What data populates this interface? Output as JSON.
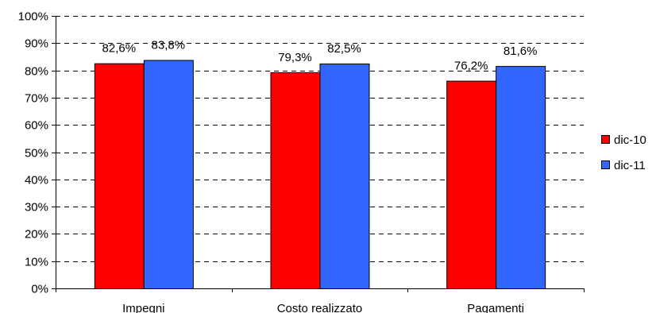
{
  "chart_data": {
    "type": "bar",
    "title": "",
    "xlabel": "",
    "ylabel": "",
    "categories": [
      "Impegni",
      "Costo realizzato",
      "Pagamenti"
    ],
    "series": [
      {
        "name": "dic-10",
        "values": [
          82.6,
          79.3,
          76.2
        ],
        "labels": [
          "82,6%",
          "79,3%",
          "76,2%"
        ],
        "color": "#ff0000"
      },
      {
        "name": "dic-11",
        "values": [
          83.8,
          82.5,
          81.6
        ],
        "labels": [
          "83,8%",
          "82,5%",
          "81,6%"
        ],
        "color": "#3366ff"
      }
    ],
    "ylim": [
      0,
      100
    ],
    "yticks": [
      0,
      10,
      20,
      30,
      40,
      50,
      60,
      70,
      80,
      90,
      100
    ],
    "ytick_labels": [
      "0%",
      "10%",
      "20%",
      "30%",
      "40%",
      "50%",
      "60%",
      "70%",
      "80%",
      "90%",
      "100%"
    ],
    "grid": true,
    "legend_position": "right"
  }
}
